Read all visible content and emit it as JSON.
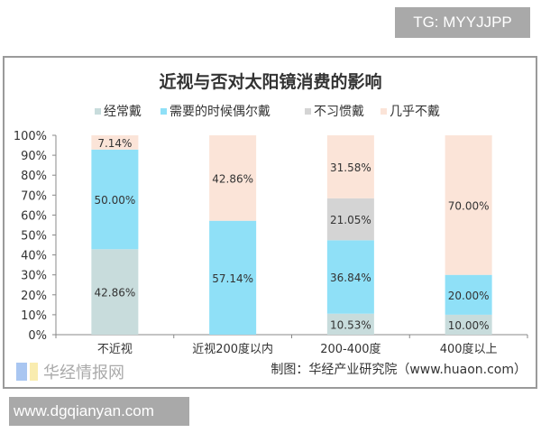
{
  "watermark_top": "TG: MYYJJPP",
  "watermark_bottom": "www.dgqianyan.com",
  "logo_text": "华经情报网",
  "chart_data": {
    "type": "bar",
    "stacked": true,
    "title": "近视与否对太阳镜消费的影响",
    "categories": [
      "不近视",
      "近视200度以内",
      "200-400度",
      "400度以上"
    ],
    "series": [
      {
        "name": "经常戴",
        "color": "#c8dcdc",
        "values": [
          42.86,
          0,
          10.53,
          10.0
        ],
        "labels": [
          "42.86%",
          "",
          "10.53%",
          "10.00%"
        ]
      },
      {
        "name": "需要的时候偶尔戴",
        "color": "#8fe0f7",
        "values": [
          50.0,
          57.14,
          36.84,
          20.0
        ],
        "labels": [
          "50.00%",
          "57.14%",
          "36.84%",
          "20.00%"
        ]
      },
      {
        "name": "不习惯戴",
        "color": "#d4d4d4",
        "values": [
          0,
          0,
          21.05,
          0
        ],
        "labels": [
          "",
          "",
          "21.05%",
          ""
        ]
      },
      {
        "name": "几乎不戴",
        "color": "#fbe4d8",
        "values": [
          7.14,
          42.86,
          31.58,
          70.0
        ],
        "labels": [
          "7.14%",
          "42.86%",
          "31.58%",
          "70.00%"
        ]
      }
    ],
    "ylim": [
      0,
      100
    ],
    "yticks": [
      "0%",
      "10%",
      "20%",
      "30%",
      "40%",
      "50%",
      "60%",
      "70%",
      "80%",
      "90%",
      "100%"
    ],
    "legend": "top",
    "source": "制图：华经产业研究院（www.huaon.com）"
  }
}
